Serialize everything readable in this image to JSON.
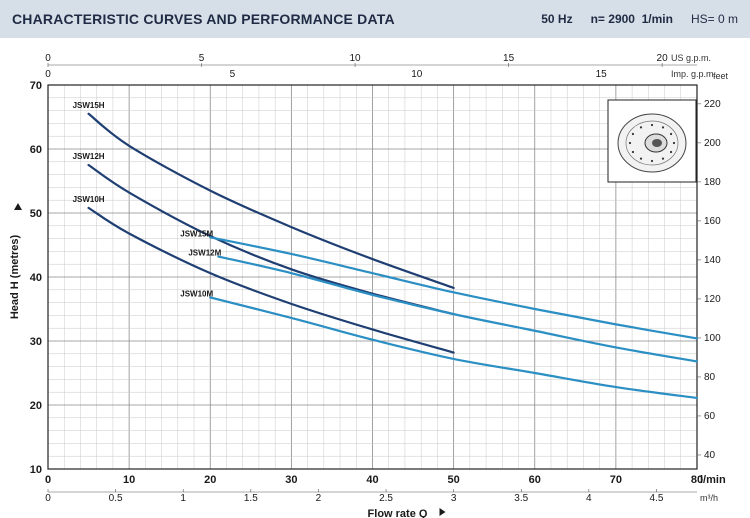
{
  "header": {
    "title": "CHARACTERISTIC CURVES AND PERFORMANCE DATA",
    "freq": "50 Hz",
    "speed": "n= 2900  1/min",
    "hs": "HS= 0 m"
  },
  "chart_data": {
    "type": "line",
    "title": "CHARACTERISTIC CURVES AND PERFORMANCE DATA",
    "xlabel": "Flow rate Q",
    "ylabel": "Head H (metres)",
    "x_unit": "l/min",
    "xlim": [
      0,
      80
    ],
    "ylim": [
      10,
      70
    ],
    "grid": true,
    "x_ticks": [
      0,
      10,
      20,
      30,
      40,
      50,
      60,
      70,
      80
    ],
    "y_ticks": [
      10,
      20,
      30,
      40,
      50,
      60,
      70
    ],
    "secondary_axes": {
      "m3h": {
        "unit": "m³/h",
        "ticks": [
          "0",
          "0.5",
          "1",
          "1.5",
          "2",
          "2.5",
          "3",
          "3.5",
          "4",
          "4.5"
        ]
      },
      "us_gpm": {
        "unit": "US g.p.m.",
        "ticks": [
          "0",
          "5",
          "10",
          "15",
          "20"
        ]
      },
      "imp_gpm": {
        "unit": "Imp. g.p.m.",
        "ticks": [
          "0",
          "5",
          "10",
          "15"
        ]
      },
      "feet": {
        "unit": "feet",
        "ticks": [
          "40",
          "60",
          "80",
          "100",
          "120",
          "140",
          "160",
          "180",
          "200",
          "220"
        ]
      }
    },
    "series": [
      {
        "name": "JSW15H",
        "color": "#1f3f73",
        "x": [
          5,
          10,
          20,
          30,
          40,
          50
        ],
        "y": [
          65.5,
          60.5,
          53.5,
          47.8,
          42.8,
          38.3
        ]
      },
      {
        "name": "JSW12H",
        "color": "#1f3f73",
        "x": [
          5,
          10,
          20,
          30,
          40,
          50
        ],
        "y": [
          57.5,
          53.2,
          46.4,
          41.2,
          37.4,
          34.2
        ]
      },
      {
        "name": "JSW10H",
        "color": "#1f3f73",
        "x": [
          5,
          10,
          20,
          30,
          40,
          50
        ],
        "y": [
          50.8,
          46.8,
          40.6,
          35.8,
          31.8,
          28.2
        ]
      },
      {
        "name": "JSW15M",
        "color": "#2b8fc4",
        "x": [
          20,
          30,
          40,
          50,
          60,
          70,
          80
        ],
        "y": [
          46.2,
          43.6,
          40.6,
          37.6,
          35.0,
          32.6,
          30.4
        ]
      },
      {
        "name": "JSW12M",
        "color": "#2b8fc4",
        "x": [
          21,
          30,
          40,
          50,
          60,
          70,
          80
        ],
        "y": [
          43.2,
          40.6,
          37.2,
          34.2,
          31.6,
          29.0,
          26.8
        ]
      },
      {
        "name": "JSW10M",
        "color": "#2b8fc4",
        "x": [
          20,
          30,
          40,
          50,
          60,
          70,
          80
        ],
        "y": [
          36.8,
          33.6,
          30.2,
          27.2,
          25.0,
          22.8,
          21.1
        ]
      }
    ]
  }
}
